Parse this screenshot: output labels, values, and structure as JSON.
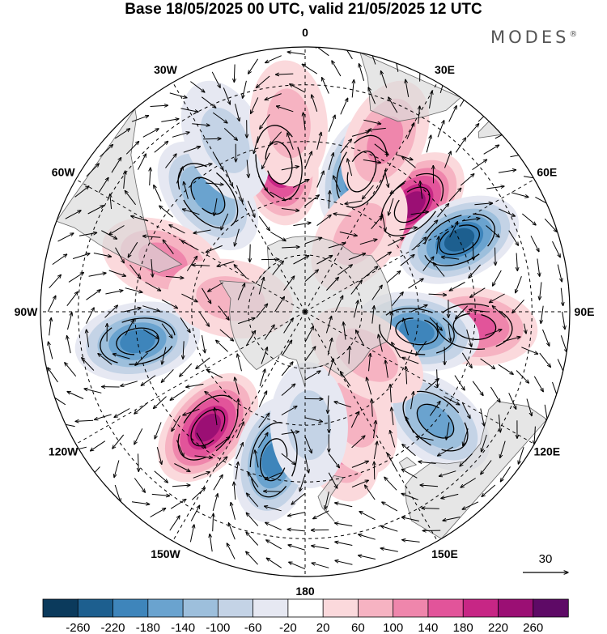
{
  "title": "Base 18/05/2025 00 UTC, valid 21/05/2025 12 UTC",
  "brand": {
    "name": "MODES",
    "mark": "®"
  },
  "meridian_labels": [
    {
      "text": "0",
      "lon": 0
    },
    {
      "text": "30E",
      "lon": 30
    },
    {
      "text": "60E",
      "lon": 60
    },
    {
      "text": "90E",
      "lon": 90
    },
    {
      "text": "120E",
      "lon": 120
    },
    {
      "text": "150E",
      "lon": 150
    },
    {
      "text": "180",
      "lon": 180
    },
    {
      "text": "150W",
      "lon": -150
    },
    {
      "text": "120W",
      "lon": -120
    },
    {
      "text": "90W",
      "lon": -90
    },
    {
      "text": "60W",
      "lon": -60
    },
    {
      "text": "30W",
      "lon": -30
    }
  ],
  "reference_vector": {
    "label": "30"
  },
  "colorbar": {
    "ticks": [
      "-260",
      "-220",
      "-180",
      "-140",
      "-100",
      "-60",
      "-20",
      "20",
      "60",
      "100",
      "140",
      "180",
      "220",
      "260"
    ],
    "colors": [
      "#0b3a5c",
      "#1d5f8f",
      "#3e85bb",
      "#6aa3cf",
      "#9dbfdc",
      "#c4d3e6",
      "#e6e8f2",
      "#ffffff",
      "#fbd9dc",
      "#f6b3c2",
      "#ef86ac",
      "#e2549a",
      "#c72685",
      "#9b0f74",
      "#5e0a66"
    ]
  },
  "anomalies": [
    {
      "lat": -50,
      "lon": -10,
      "value": 200
    },
    {
      "lat": -50,
      "lon": 22,
      "value": -210
    },
    {
      "lat": -50,
      "lon": 45,
      "value": 190
    },
    {
      "lat": -45,
      "lon": 65,
      "value": -200
    },
    {
      "lat": -45,
      "lon": 95,
      "value": 110
    },
    {
      "lat": -60,
      "lon": 100,
      "value": -180
    },
    {
      "lat": -45,
      "lon": 130,
      "value": -140
    },
    {
      "lat": -50,
      "lon": -40,
      "value": -140
    },
    {
      "lat": -50,
      "lon": -70,
      "value": 80
    },
    {
      "lat": -45,
      "lon": -100,
      "value": -150
    },
    {
      "lat": -50,
      "lon": -140,
      "value": 200
    },
    {
      "lat": -50,
      "lon": -168,
      "value": -180
    },
    {
      "lat": -55,
      "lon": 165,
      "value": 70
    },
    {
      "lat": -60,
      "lon": 155,
      "value": 60
    },
    {
      "lat": -60,
      "lon": 178,
      "value": -40
    },
    {
      "lat": -70,
      "lon": -80,
      "value": 40
    },
    {
      "lat": -70,
      "lon": 125,
      "value": 40
    },
    {
      "lat": -65,
      "lon": 35,
      "value": 40
    },
    {
      "lat": -40,
      "lon": 25,
      "value": 80
    },
    {
      "lat": -40,
      "lon": -25,
      "value": -60
    },
    {
      "lat": -40,
      "lon": -5,
      "value": 60
    }
  ]
}
